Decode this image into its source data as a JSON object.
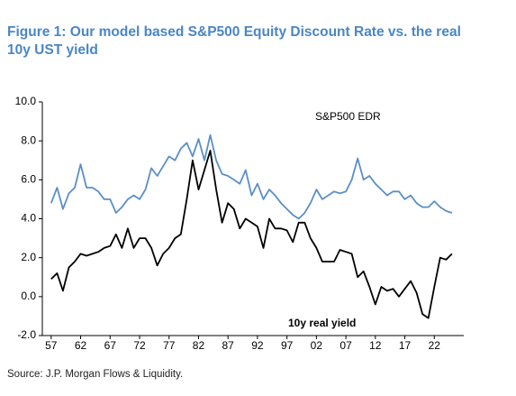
{
  "chart_data": {
    "type": "line",
    "title": "Figure 1: Our model based S&P500 Equity Discount Rate vs. the real 10y UST yield",
    "source": "Source: J.P. Morgan Flows & Liquidity.",
    "x": [
      1957,
      1958,
      1959,
      1960,
      1961,
      1962,
      1963,
      1964,
      1965,
      1966,
      1967,
      1968,
      1969,
      1970,
      1971,
      1972,
      1973,
      1974,
      1975,
      1976,
      1977,
      1978,
      1979,
      1980,
      1981,
      1982,
      1983,
      1984,
      1985,
      1986,
      1987,
      1988,
      1989,
      1990,
      1991,
      1992,
      1993,
      1994,
      1995,
      1996,
      1997,
      1998,
      1999,
      2000,
      2001,
      2002,
      2003,
      2004,
      2005,
      2006,
      2007,
      2008,
      2009,
      2010,
      2011,
      2012,
      2013,
      2014,
      2015,
      2016,
      2017,
      2018,
      2019,
      2020,
      2021,
      2022,
      2023,
      2024,
      2025
    ],
    "series": [
      {
        "name": "S&P500 EDR",
        "color": "#5b8fc7",
        "values": [
          4.8,
          5.6,
          4.5,
          5.3,
          5.6,
          6.8,
          5.6,
          5.6,
          5.4,
          5.0,
          5.0,
          4.3,
          4.6,
          5.0,
          5.2,
          5.0,
          5.5,
          6.6,
          6.2,
          6.7,
          7.2,
          7.0,
          7.6,
          7.9,
          7.2,
          8.1,
          7.0,
          8.3,
          7.0,
          6.3,
          6.2,
          6.0,
          5.8,
          6.5,
          5.2,
          5.8,
          5.0,
          5.5,
          5.2,
          4.8,
          4.5,
          4.2,
          4.0,
          4.3,
          4.8,
          5.5,
          5.0,
          5.2,
          5.4,
          5.3,
          5.4,
          6.0,
          7.1,
          6.0,
          6.2,
          5.8,
          5.5,
          5.2,
          5.4,
          5.4,
          5.0,
          5.2,
          4.8,
          4.6,
          4.6,
          4.9,
          4.6,
          4.4,
          4.3
        ]
      },
      {
        "name": "10y real yield",
        "color": "#000000",
        "values": [
          0.9,
          1.2,
          0.3,
          1.5,
          1.8,
          2.2,
          2.1,
          2.2,
          2.3,
          2.5,
          2.6,
          3.2,
          2.5,
          3.5,
          2.5,
          3.0,
          3.0,
          2.5,
          1.6,
          2.2,
          2.5,
          3.0,
          3.2,
          5.0,
          7.0,
          5.5,
          6.5,
          7.5,
          5.5,
          3.8,
          4.8,
          4.5,
          3.5,
          4.0,
          3.8,
          3.6,
          2.5,
          4.0,
          3.5,
          3.5,
          3.4,
          2.8,
          3.8,
          3.8,
          3.0,
          2.5,
          1.8,
          1.8,
          1.8,
          2.4,
          2.3,
          2.2,
          1.0,
          1.3,
          0.5,
          -0.4,
          0.5,
          0.3,
          0.4,
          0.0,
          0.4,
          0.8,
          0.2,
          -0.9,
          -1.1,
          0.5,
          2.0,
          1.9,
          2.2
        ]
      }
    ],
    "xlim": [
      1955.5,
      2027
    ],
    "xticks": [
      {
        "value": 1957,
        "label": "57"
      },
      {
        "value": 1962,
        "label": "62"
      },
      {
        "value": 1967,
        "label": "67"
      },
      {
        "value": 1972,
        "label": "72"
      },
      {
        "value": 1977,
        "label": "77"
      },
      {
        "value": 1982,
        "label": "82"
      },
      {
        "value": 1987,
        "label": "87"
      },
      {
        "value": 1992,
        "label": "92"
      },
      {
        "value": 1997,
        "label": "97"
      },
      {
        "value": 2002,
        "label": "02"
      },
      {
        "value": 2007,
        "label": "07"
      },
      {
        "value": 2012,
        "label": "12"
      },
      {
        "value": 2017,
        "label": "17"
      },
      {
        "value": 2022,
        "label": "22"
      }
    ],
    "ylim": [
      -2,
      10
    ],
    "yticks": [
      {
        "value": -2,
        "label": "-2.0"
      },
      {
        "value": 0,
        "label": "0.0"
      },
      {
        "value": 2,
        "label": "2.0"
      },
      {
        "value": 4,
        "label": "4.0"
      },
      {
        "value": 6,
        "label": "6.0"
      },
      {
        "value": 8,
        "label": "8.0"
      },
      {
        "value": 10,
        "label": "10.0"
      }
    ],
    "grid": false
  }
}
